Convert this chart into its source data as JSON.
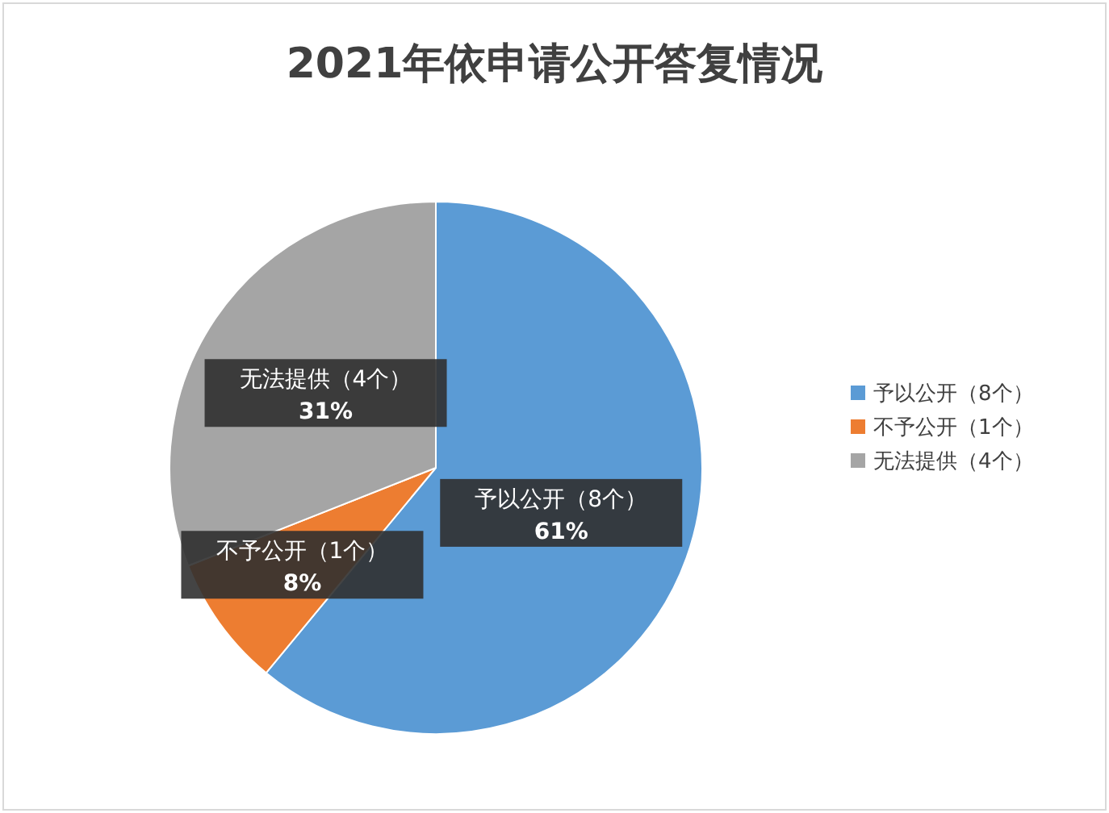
{
  "chart_data": {
    "type": "pie",
    "title": "2021年依申请公开答复情况",
    "categories": [
      "予以公开（8个）",
      "不予公开（1个）",
      "无法提供（4个）"
    ],
    "values": [
      61,
      8,
      31
    ],
    "value_labels": [
      "61%",
      "8%",
      "31%"
    ],
    "colors": [
      "#5b9bd5",
      "#ed7d31",
      "#a5a5a5"
    ],
    "legend": "right"
  }
}
